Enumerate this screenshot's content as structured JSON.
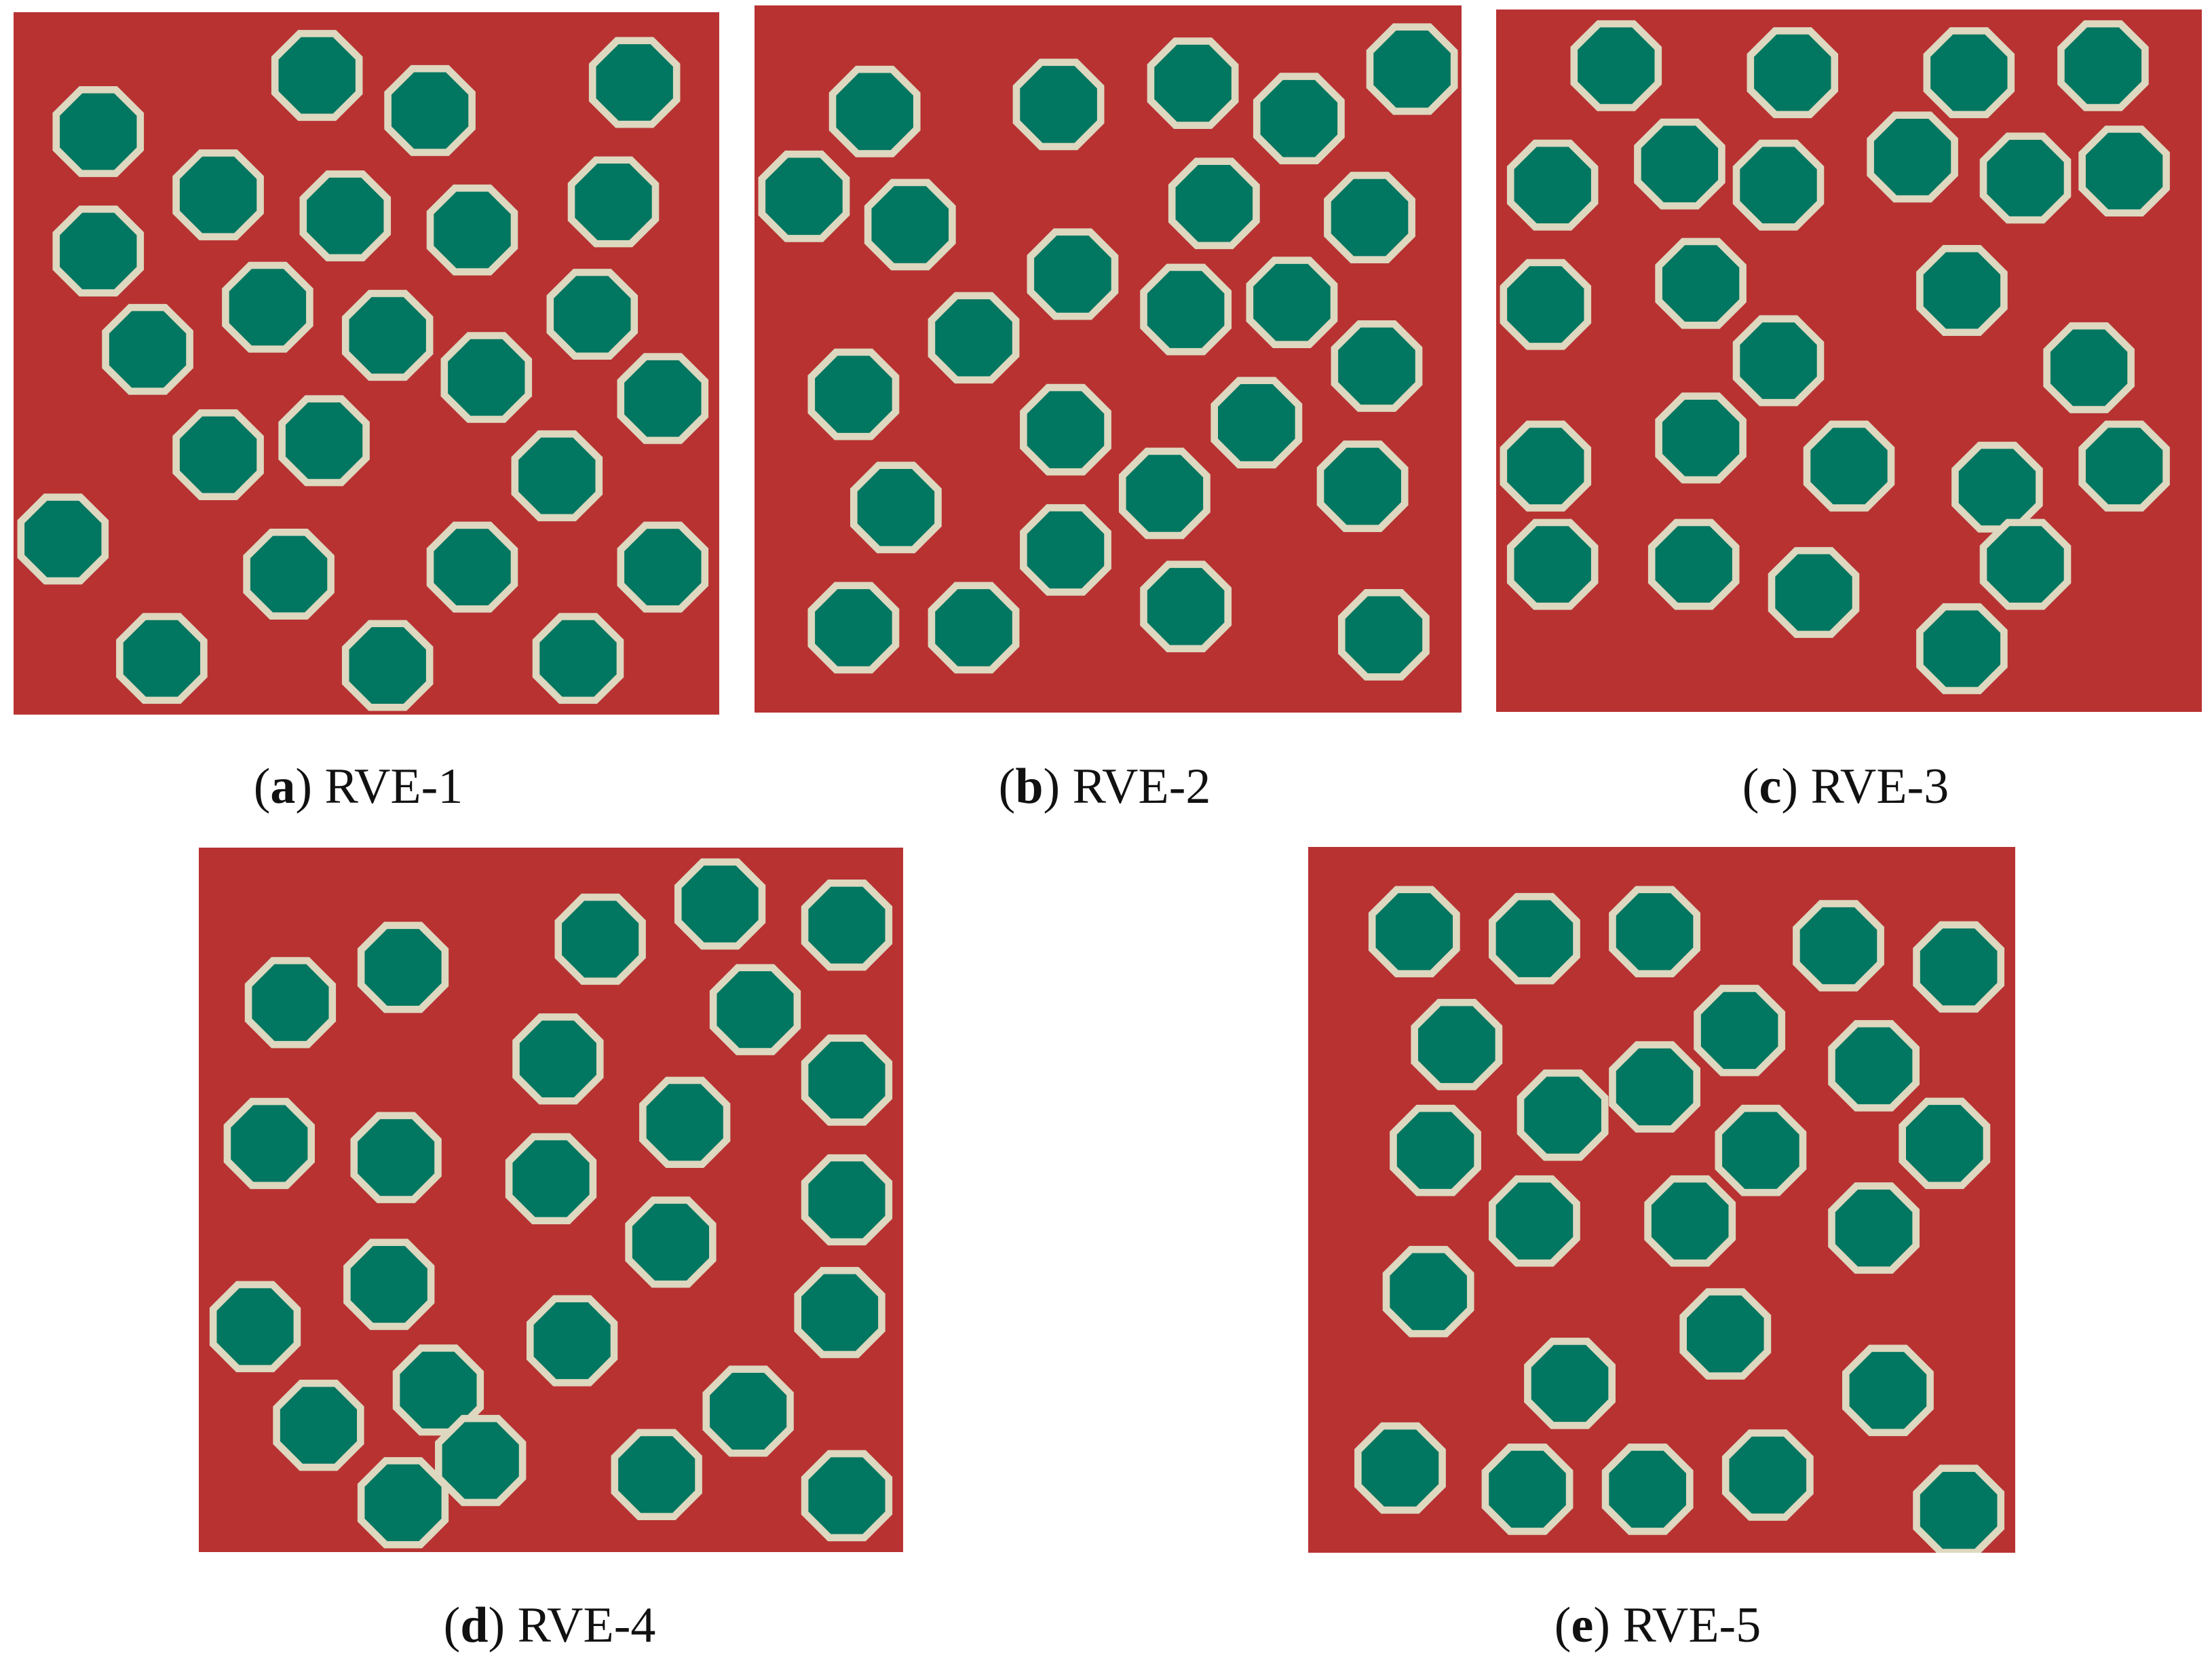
{
  "colors": {
    "matrix": "#b83232",
    "fiber": "#017660",
    "interphase": "#ddd8bf",
    "background": "#ffffff"
  },
  "panels": [
    {
      "letter": "a",
      "name": "RVE-1",
      "fibers": [
        [
          0.12,
          0.17
        ],
        [
          0.43,
          0.09
        ],
        [
          0.59,
          0.14
        ],
        [
          0.88,
          0.1
        ],
        [
          0.29,
          0.26
        ],
        [
          0.47,
          0.29
        ],
        [
          0.65,
          0.31
        ],
        [
          0.85,
          0.27
        ],
        [
          0.12,
          0.34
        ],
        [
          0.36,
          0.42
        ],
        [
          0.19,
          0.48
        ],
        [
          0.53,
          0.46
        ],
        [
          0.82,
          0.43
        ],
        [
          0.67,
          0.52
        ],
        [
          0.92,
          0.55
        ],
        [
          0.29,
          0.63
        ],
        [
          0.44,
          0.61
        ],
        [
          0.77,
          0.66
        ],
        [
          0.07,
          0.75
        ],
        [
          0.39,
          0.8
        ],
        [
          0.65,
          0.79
        ],
        [
          0.92,
          0.79
        ],
        [
          0.21,
          0.92
        ],
        [
          0.53,
          0.93
        ],
        [
          0.8,
          0.92
        ]
      ]
    },
    {
      "letter": "b",
      "name": "RVE-2",
      "fibers": [
        [
          0.17,
          0.15
        ],
        [
          0.43,
          0.14
        ],
        [
          0.62,
          0.11
        ],
        [
          0.77,
          0.16
        ],
        [
          0.93,
          0.09
        ],
        [
          0.07,
          0.27
        ],
        [
          0.22,
          0.31
        ],
        [
          0.65,
          0.28
        ],
        [
          0.87,
          0.3
        ],
        [
          0.45,
          0.38
        ],
        [
          0.61,
          0.43
        ],
        [
          0.76,
          0.42
        ],
        [
          0.31,
          0.47
        ],
        [
          0.88,
          0.51
        ],
        [
          0.14,
          0.55
        ],
        [
          0.44,
          0.6
        ],
        [
          0.71,
          0.59
        ],
        [
          0.58,
          0.69
        ],
        [
          0.86,
          0.68
        ],
        [
          0.2,
          0.71
        ],
        [
          0.44,
          0.77
        ],
        [
          0.61,
          0.85
        ],
        [
          0.14,
          0.88
        ],
        [
          0.31,
          0.88
        ],
        [
          0.89,
          0.89
        ]
      ]
    },
    {
      "letter": "c",
      "name": "RVE-3",
      "fibers": [
        [
          0.17,
          0.08
        ],
        [
          0.42,
          0.09
        ],
        [
          0.67,
          0.09
        ],
        [
          0.86,
          0.08
        ],
        [
          0.08,
          0.25
        ],
        [
          0.26,
          0.22
        ],
        [
          0.4,
          0.25
        ],
        [
          0.59,
          0.21
        ],
        [
          0.75,
          0.24
        ],
        [
          0.89,
          0.23
        ],
        [
          0.07,
          0.42
        ],
        [
          0.29,
          0.39
        ],
        [
          0.66,
          0.4
        ],
        [
          0.4,
          0.5
        ],
        [
          0.84,
          0.51
        ],
        [
          0.07,
          0.65
        ],
        [
          0.29,
          0.61
        ],
        [
          0.5,
          0.65
        ],
        [
          0.71,
          0.68
        ],
        [
          0.89,
          0.65
        ],
        [
          0.08,
          0.79
        ],
        [
          0.28,
          0.79
        ],
        [
          0.45,
          0.83
        ],
        [
          0.75,
          0.79
        ],
        [
          0.66,
          0.91
        ]
      ]
    },
    {
      "letter": "d",
      "name": "RVE-4",
      "fibers": [
        [
          0.29,
          0.17
        ],
        [
          0.13,
          0.22
        ],
        [
          0.57,
          0.13
        ],
        [
          0.74,
          0.08
        ],
        [
          0.92,
          0.11
        ],
        [
          0.79,
          0.23
        ],
        [
          0.51,
          0.3
        ],
        [
          0.92,
          0.33
        ],
        [
          0.1,
          0.42
        ],
        [
          0.28,
          0.44
        ],
        [
          0.69,
          0.39
        ],
        [
          0.5,
          0.47
        ],
        [
          0.92,
          0.5
        ],
        [
          0.67,
          0.56
        ],
        [
          0.27,
          0.62
        ],
        [
          0.91,
          0.66
        ],
        [
          0.08,
          0.68
        ],
        [
          0.53,
          0.7
        ],
        [
          0.34,
          0.77
        ],
        [
          0.78,
          0.8
        ],
        [
          0.17,
          0.82
        ],
        [
          0.4,
          0.87
        ],
        [
          0.29,
          0.93
        ],
        [
          0.65,
          0.89
        ],
        [
          0.92,
          0.92
        ]
      ]
    },
    {
      "letter": "e",
      "name": "RVE-5",
      "fibers": [
        [
          0.15,
          0.12
        ],
        [
          0.32,
          0.13
        ],
        [
          0.49,
          0.12
        ],
        [
          0.75,
          0.14
        ],
        [
          0.92,
          0.17
        ],
        [
          0.21,
          0.28
        ],
        [
          0.61,
          0.26
        ],
        [
          0.8,
          0.31
        ],
        [
          0.49,
          0.34
        ],
        [
          0.36,
          0.38
        ],
        [
          0.18,
          0.43
        ],
        [
          0.64,
          0.43
        ],
        [
          0.9,
          0.42
        ],
        [
          0.32,
          0.53
        ],
        [
          0.54,
          0.53
        ],
        [
          0.8,
          0.54
        ],
        [
          0.17,
          0.63
        ],
        [
          0.59,
          0.69
        ],
        [
          0.37,
          0.76
        ],
        [
          0.82,
          0.77
        ],
        [
          0.13,
          0.88
        ],
        [
          0.31,
          0.91
        ],
        [
          0.48,
          0.91
        ],
        [
          0.65,
          0.89
        ],
        [
          0.92,
          0.94
        ]
      ]
    }
  ]
}
